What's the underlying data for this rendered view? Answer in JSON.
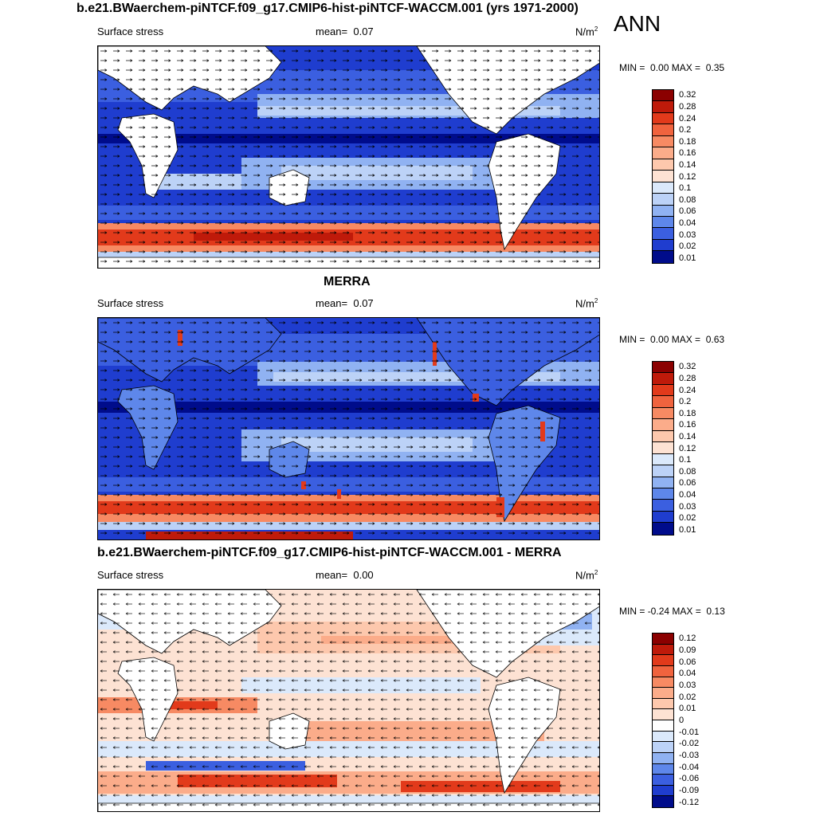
{
  "season": "ANN",
  "panels": [
    {
      "id": "model",
      "title": "b.e21.BWaerchem-piNTCF.f09_g17.CMIP6-hist-piNTCF-WACCM.001 (yrs 1971-2000)",
      "variable": "Surface stress",
      "mean_label": "mean=",
      "mean_value": "0.07",
      "units_base": "N/m",
      "units_exp": "2",
      "min_label": "MIN =",
      "min_value": "0.00",
      "max_label": "MAX =",
      "max_value": "0.35",
      "levels": [
        "0.32",
        "0.28",
        "0.24",
        "0.2",
        "0.18",
        "0.16",
        "0.14",
        "0.12",
        "0.1",
        "0.08",
        "0.06",
        "0.04",
        "0.03",
        "0.02",
        "0.01"
      ],
      "colors": [
        "#8b0000",
        "#bf1a0a",
        "#e23a1b",
        "#f0633e",
        "#f78a63",
        "#fbac8a",
        "#fdc8ad",
        "#fde2d3",
        "#dbe9fb",
        "#bcd2f7",
        "#90b2f2",
        "#5e87ea",
        "#3b5fe0",
        "#1f3dcf",
        "#000c8b"
      ]
    },
    {
      "id": "obs",
      "title": "MERRA",
      "variable": "Surface stress",
      "mean_label": "mean=",
      "mean_value": "0.07",
      "units_base": "N/m",
      "units_exp": "2",
      "min_label": "MIN =",
      "min_value": "0.00",
      "max_label": "MAX =",
      "max_value": "0.63",
      "levels": [
        "0.32",
        "0.28",
        "0.24",
        "0.2",
        "0.18",
        "0.16",
        "0.14",
        "0.12",
        "0.1",
        "0.08",
        "0.06",
        "0.04",
        "0.03",
        "0.02",
        "0.01"
      ],
      "colors": [
        "#8b0000",
        "#bf1a0a",
        "#e23a1b",
        "#f0633e",
        "#f78a63",
        "#fbac8a",
        "#fdc8ad",
        "#fde2d3",
        "#dbe9fb",
        "#bcd2f7",
        "#90b2f2",
        "#5e87ea",
        "#3b5fe0",
        "#1f3dcf",
        "#000c8b"
      ]
    },
    {
      "id": "diff",
      "title": "b.e21.BWaerchem-piNTCF.f09_g17.CMIP6-hist-piNTCF-WACCM.001 - MERRA",
      "variable": "Surface stress",
      "mean_label": "mean=",
      "mean_value": "0.00",
      "units_base": "N/m",
      "units_exp": "2",
      "min_label": "MIN =",
      "min_value": "-0.24",
      "max_label": "MAX =",
      "max_value": "0.13",
      "levels": [
        "0.12",
        "0.09",
        "0.06",
        "0.04",
        "0.03",
        "0.02",
        "0.01",
        "0",
        "-0.01",
        "-0.02",
        "-0.03",
        "-0.04",
        "-0.06",
        "-0.09",
        "-0.12"
      ],
      "colors": [
        "#8b0000",
        "#bf1a0a",
        "#e23a1b",
        "#f0633e",
        "#f78a63",
        "#fbac8a",
        "#fdc8ad",
        "#fde2d3",
        "#ffffff",
        "#dbe9fb",
        "#bcd2f7",
        "#90b2f2",
        "#5e87ea",
        "#3b5fe0",
        "#1f3dcf",
        "#000c8b"
      ]
    }
  ]
}
